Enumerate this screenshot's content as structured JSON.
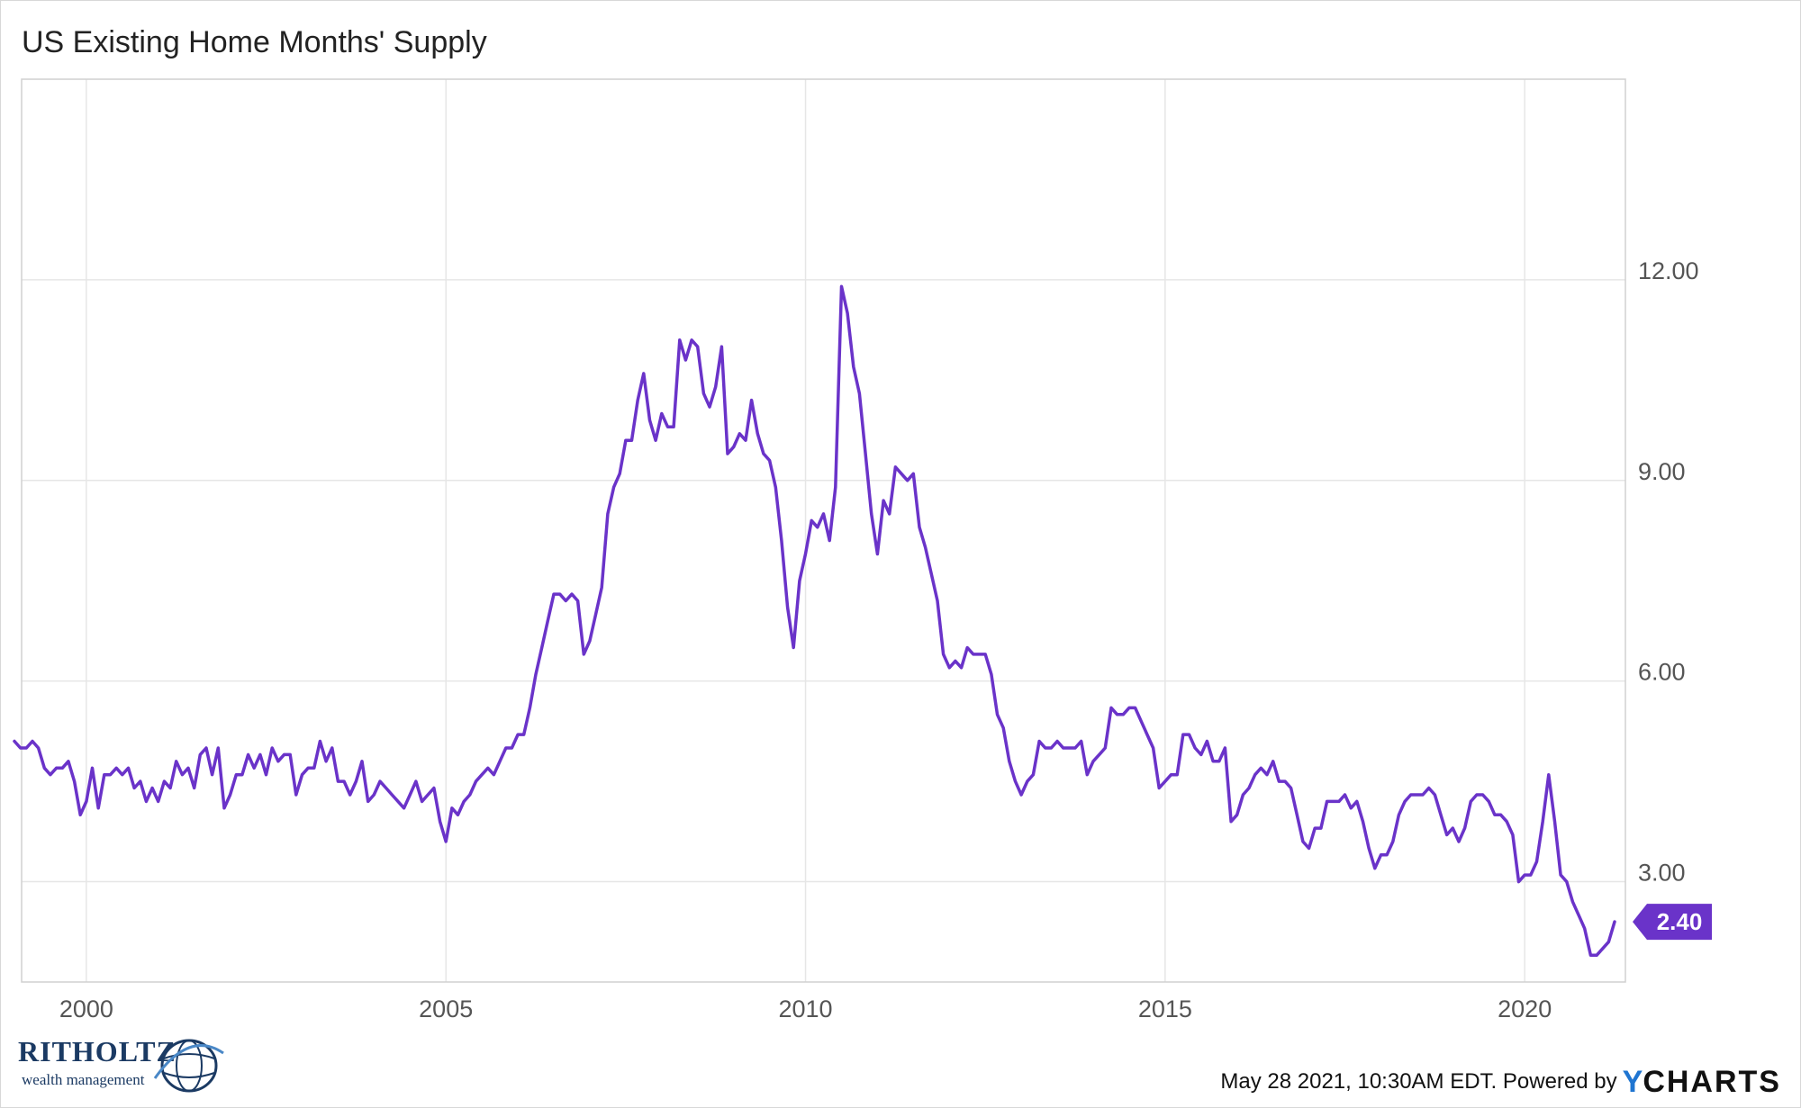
{
  "title": "US Existing Home Months' Supply",
  "footer": {
    "timestamp": "May 28 2021, 10:30AM EDT. Powered by",
    "brand_y": "Y",
    "brand_rest": "CHARTS"
  },
  "logo": {
    "name": "RITHOLTZ",
    "tagline": "wealth management"
  },
  "colors": {
    "line": "#6a33c9",
    "grid": "#e6e6e6",
    "tick_text": "#555555",
    "brand_blue": "#1f75d1",
    "logo_navy": "#1b3a63"
  },
  "chart_data": {
    "type": "line",
    "title": "US Existing Home Months' Supply",
    "xlabel": "",
    "ylabel": "",
    "xlim": [
      1999.1,
      2021.4
    ],
    "ylim": [
      1.5,
      15
    ],
    "x_ticks": [
      2000,
      2005,
      2010,
      2015,
      2020
    ],
    "x_tick_labels": [
      "2000",
      "2005",
      "2010",
      "2015",
      "2020"
    ],
    "y_ticks": [
      3,
      6,
      9,
      12
    ],
    "y_tick_labels": [
      "3.00",
      "6.00",
      "9.00",
      "12.00"
    ],
    "grid": true,
    "start": "1999-01",
    "frequency": "monthly",
    "last_value_label": "2.40",
    "series": [
      {
        "values": [
          5.1,
          5.0,
          5.0,
          5.1,
          5.0,
          4.7,
          4.6,
          4.7,
          4.7,
          4.8,
          4.5,
          4.0,
          4.2,
          4.7,
          4.1,
          4.6,
          4.6,
          4.7,
          4.6,
          4.7,
          4.4,
          4.5,
          4.2,
          4.4,
          4.2,
          4.5,
          4.4,
          4.8,
          4.6,
          4.7,
          4.4,
          4.9,
          5.0,
          4.6,
          5.0,
          4.1,
          4.3,
          4.6,
          4.6,
          4.9,
          4.7,
          4.9,
          4.6,
          5.0,
          4.8,
          4.9,
          4.9,
          4.3,
          4.6,
          4.7,
          4.7,
          5.1,
          4.8,
          5.0,
          4.5,
          4.5,
          4.3,
          4.5,
          4.8,
          4.2,
          4.3,
          4.5,
          4.4,
          4.3,
          4.2,
          4.1,
          4.3,
          4.5,
          4.2,
          4.3,
          4.4,
          3.9,
          3.6,
          4.1,
          4.0,
          4.2,
          4.3,
          4.5,
          4.6,
          4.7,
          4.6,
          4.8,
          5.0,
          5.0,
          5.2,
          5.2,
          5.6,
          6.1,
          6.5,
          6.9,
          7.3,
          7.3,
          7.2,
          7.3,
          7.2,
          6.4,
          6.6,
          7.0,
          7.4,
          8.5,
          8.9,
          9.1,
          9.6,
          9.6,
          10.2,
          10.6,
          9.9,
          9.6,
          10.0,
          9.8,
          9.8,
          11.1,
          10.8,
          11.1,
          11.0,
          10.3,
          10.1,
          10.4,
          11.0,
          9.4,
          9.5,
          9.7,
          9.6,
          10.2,
          9.7,
          9.4,
          9.3,
          8.9,
          8.1,
          7.1,
          6.5,
          7.5,
          7.9,
          8.4,
          8.3,
          8.5,
          8.1,
          8.9,
          11.9,
          11.5,
          10.7,
          10.3,
          9.4,
          8.5,
          7.9,
          8.7,
          8.5,
          9.2,
          9.1,
          9.0,
          9.1,
          8.3,
          8.0,
          7.6,
          7.2,
          6.4,
          6.2,
          6.3,
          6.2,
          6.5,
          6.4,
          6.4,
          6.4,
          6.1,
          5.5,
          5.3,
          4.8,
          4.5,
          4.3,
          4.5,
          4.6,
          5.1,
          5.0,
          5.0,
          5.1,
          5.0,
          5.0,
          5.0,
          5.1,
          4.6,
          4.8,
          4.9,
          5.0,
          5.6,
          5.5,
          5.5,
          5.6,
          5.6,
          5.4,
          5.2,
          5.0,
          4.4,
          4.5,
          4.6,
          4.6,
          5.2,
          5.2,
          5.0,
          4.9,
          5.1,
          4.8,
          4.8,
          5.0,
          3.9,
          4.0,
          4.3,
          4.4,
          4.6,
          4.7,
          4.6,
          4.8,
          4.5,
          4.5,
          4.4,
          4.0,
          3.6,
          3.5,
          3.8,
          3.8,
          4.2,
          4.2,
          4.2,
          4.3,
          4.1,
          4.2,
          3.9,
          3.5,
          3.2,
          3.4,
          3.4,
          3.6,
          4.0,
          4.2,
          4.3,
          4.3,
          4.3,
          4.4,
          4.3,
          4.0,
          3.7,
          3.8,
          3.6,
          3.8,
          4.2,
          4.3,
          4.3,
          4.2,
          4.0,
          4.0,
          3.9,
          3.7,
          3.0,
          3.1,
          3.1,
          3.3,
          3.9,
          4.6,
          3.9,
          3.1,
          3.0,
          2.7,
          2.5,
          2.3,
          1.9,
          1.9,
          2.0,
          2.1,
          2.4
        ]
      }
    ]
  }
}
